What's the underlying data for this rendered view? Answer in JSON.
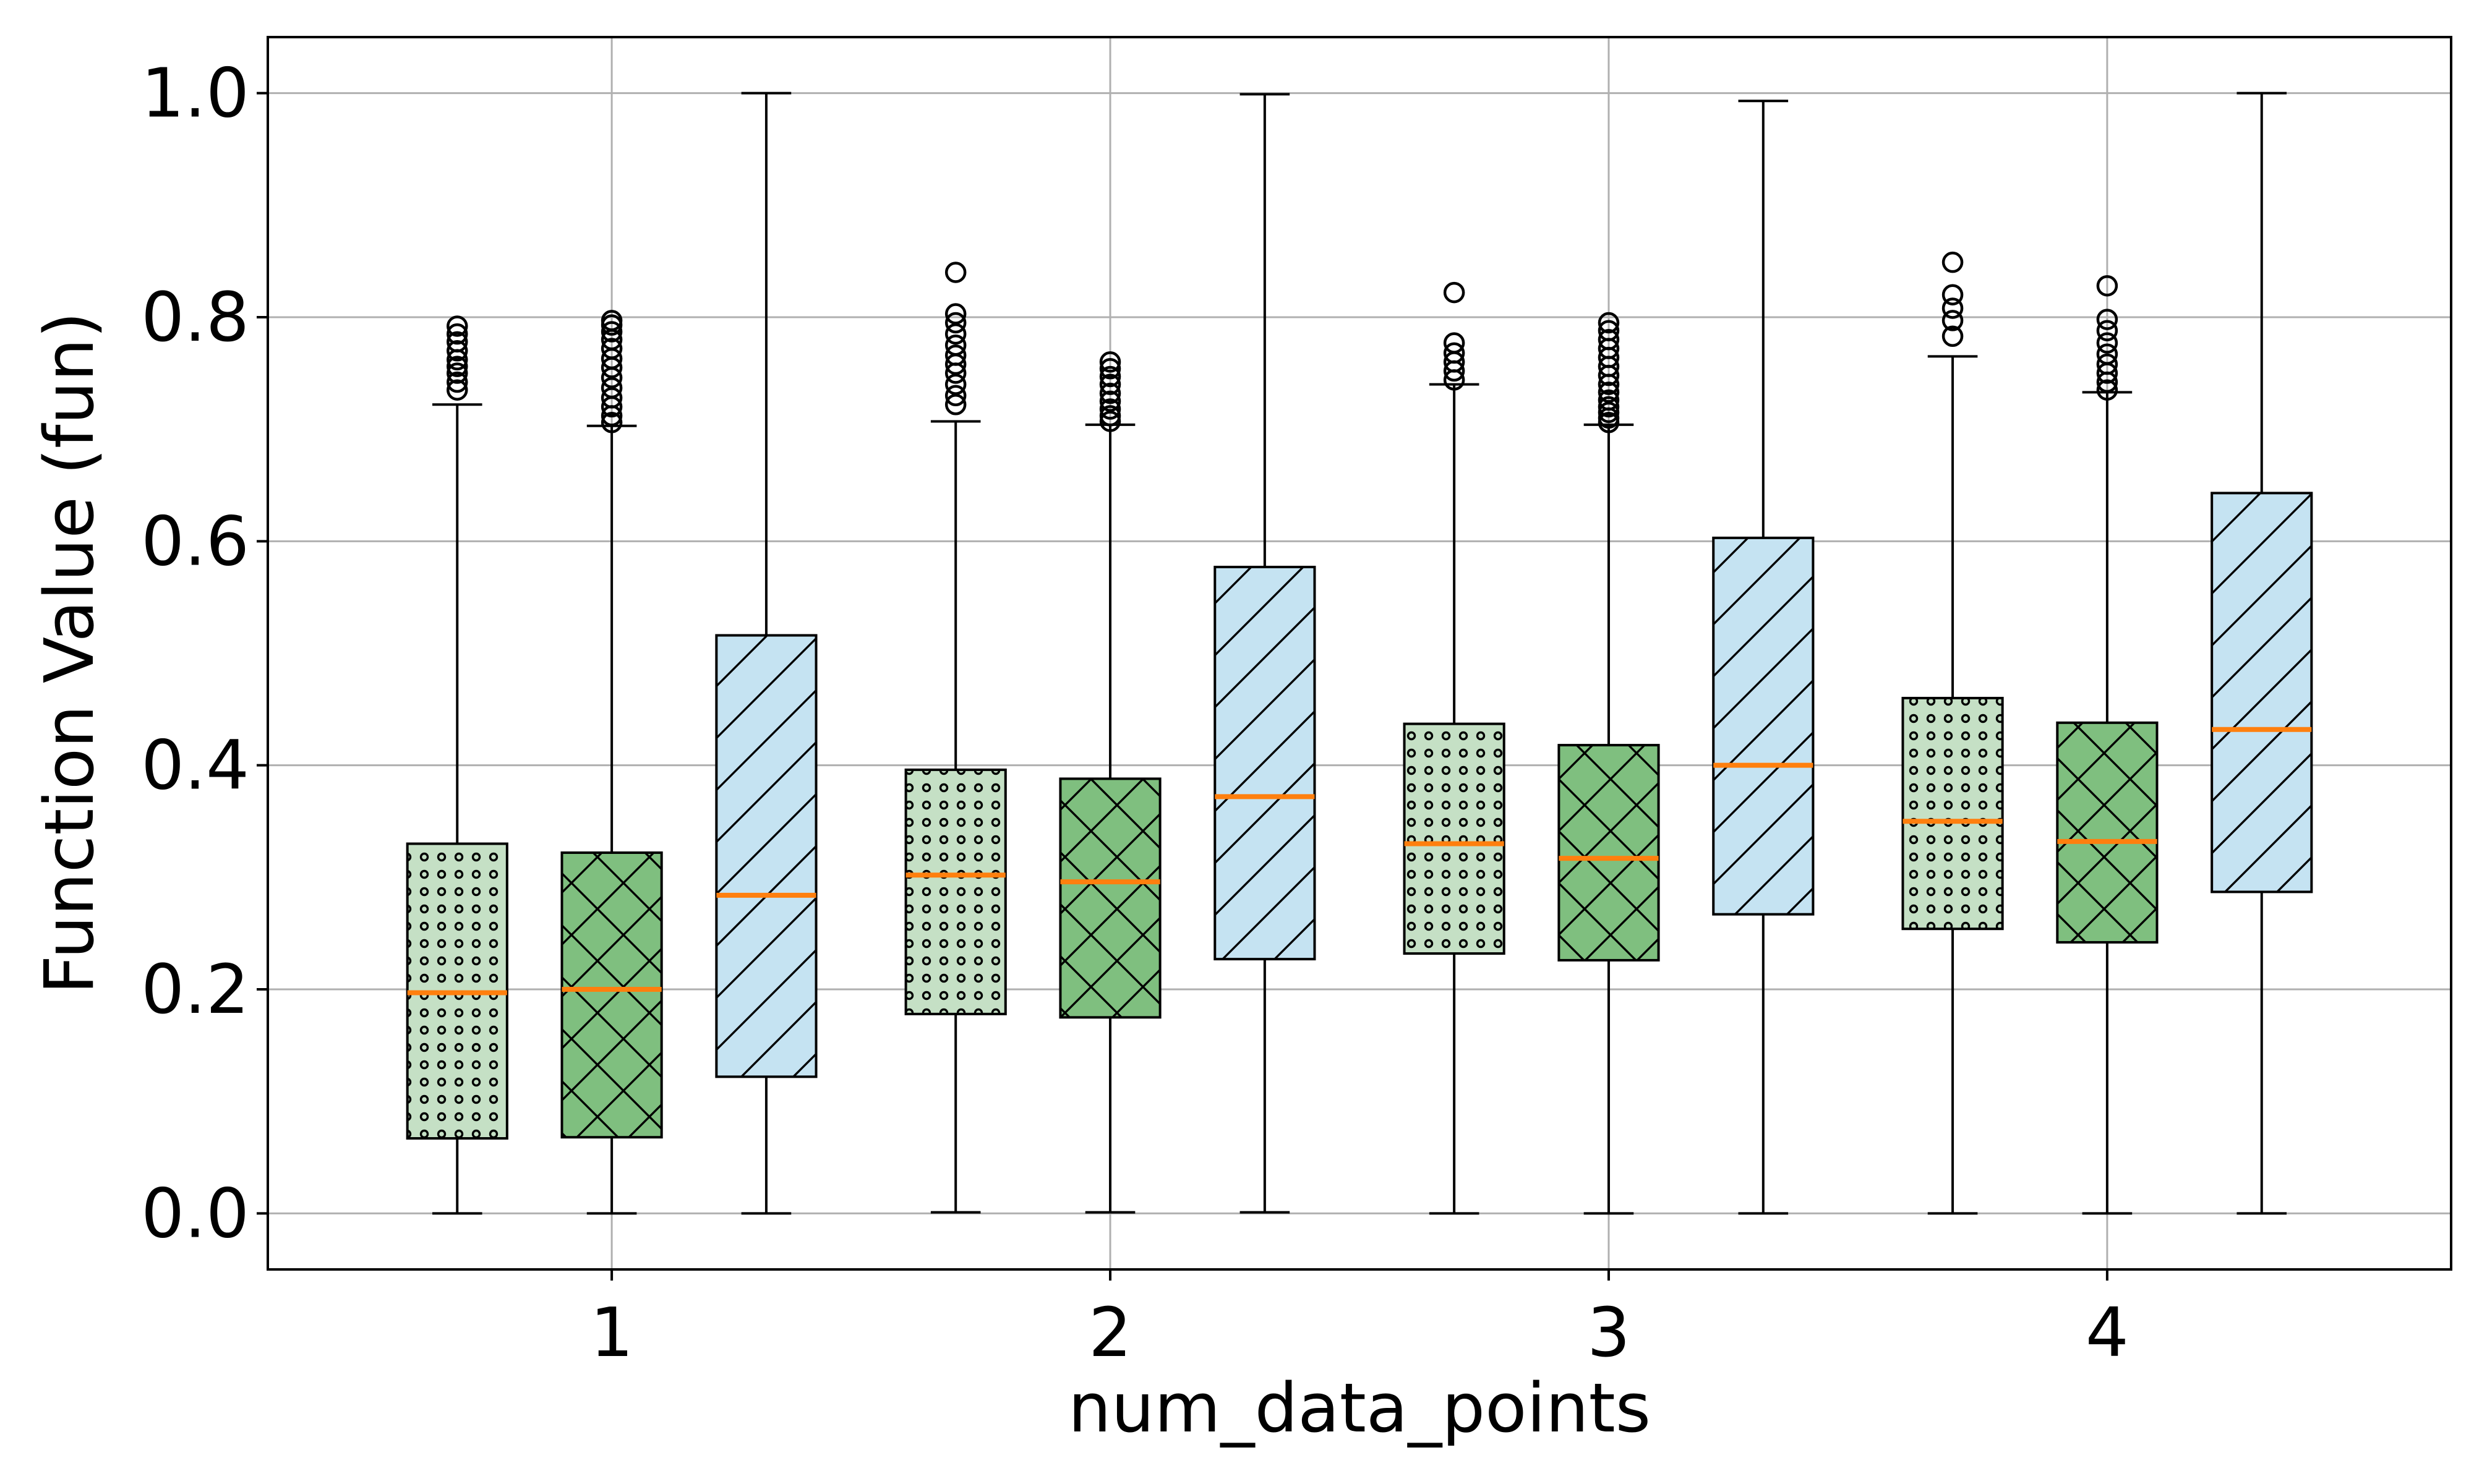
{
  "chart_data": {
    "type": "box",
    "xlabel": "num_data_points",
    "ylabel": "Function Value (fun)",
    "ylim": [
      -0.05,
      1.05
    ],
    "yticks": [
      "0.0",
      "0.2",
      "0.4",
      "0.6",
      "0.8",
      "1.0"
    ],
    "categories": [
      "1",
      "2",
      "3",
      "4"
    ],
    "grid": true,
    "legend": "none",
    "series": [
      {
        "style": {
          "fill": "#c5e0c5",
          "hatch": "dots"
        },
        "boxes": [
          {
            "whislo": 0.0,
            "q1": 0.067,
            "med": 0.197,
            "q3": 0.33,
            "whishi": 0.722,
            "fliers": [
              0.735,
              0.742,
              0.75,
              0.756,
              0.762,
              0.77,
              0.778,
              0.785,
              0.792
            ]
          },
          {
            "whislo": 0.001,
            "q1": 0.178,
            "med": 0.302,
            "q3": 0.396,
            "whishi": 0.707,
            "fliers": [
              0.722,
              0.73,
              0.74,
              0.75,
              0.758,
              0.766,
              0.775,
              0.785,
              0.795,
              0.803,
              0.84
            ]
          },
          {
            "whislo": 0.0,
            "q1": 0.232,
            "med": 0.33,
            "q3": 0.437,
            "whishi": 0.74,
            "fliers": [
              0.744,
              0.752,
              0.76,
              0.768,
              0.777,
              0.822
            ]
          },
          {
            "whislo": 0.0,
            "q1": 0.254,
            "med": 0.35,
            "q3": 0.46,
            "whishi": 0.765,
            "fliers": [
              0.783,
              0.797,
              0.808,
              0.82,
              0.849
            ]
          }
        ]
      },
      {
        "style": {
          "fill": "#7fbf7f",
          "hatch": "crosshatch"
        },
        "boxes": [
          {
            "whislo": 0.0,
            "q1": 0.068,
            "med": 0.2,
            "q3": 0.322,
            "whishi": 0.703,
            "fliers": [
              0.706,
              0.712,
              0.72,
              0.728,
              0.737,
              0.746,
              0.755,
              0.763,
              0.772,
              0.78,
              0.787,
              0.793,
              0.797
            ]
          },
          {
            "whislo": 0.001,
            "q1": 0.175,
            "med": 0.296,
            "q3": 0.388,
            "whishi": 0.704,
            "fliers": [
              0.707,
              0.712,
              0.718,
              0.725,
              0.732,
              0.74,
              0.747,
              0.754,
              0.76
            ]
          },
          {
            "whislo": 0.0,
            "q1": 0.226,
            "med": 0.317,
            "q3": 0.418,
            "whishi": 0.704,
            "fliers": [
              0.706,
              0.71,
              0.715,
              0.72,
              0.726,
              0.733,
              0.74,
              0.748,
              0.756,
              0.764,
              0.772,
              0.78,
              0.788,
              0.795
            ]
          },
          {
            "whislo": 0.0,
            "q1": 0.242,
            "med": 0.332,
            "q3": 0.438,
            "whishi": 0.733,
            "fliers": [
              0.735,
              0.742,
              0.75,
              0.758,
              0.767,
              0.777,
              0.788,
              0.798,
              0.828
            ]
          }
        ]
      },
      {
        "style": {
          "fill": "#c5e3f2",
          "hatch": "diagonal"
        },
        "boxes": [
          {
            "whislo": 0.0,
            "q1": 0.122,
            "med": 0.284,
            "q3": 0.516,
            "whishi": 1.0,
            "fliers": []
          },
          {
            "whislo": 0.001,
            "q1": 0.227,
            "med": 0.372,
            "q3": 0.577,
            "whishi": 0.999,
            "fliers": []
          },
          {
            "whislo": 0.0,
            "q1": 0.267,
            "med": 0.4,
            "q3": 0.603,
            "whishi": 0.993,
            "fliers": []
          },
          {
            "whislo": 0.0,
            "q1": 0.287,
            "med": 0.432,
            "q3": 0.643,
            "whishi": 1.0,
            "fliers": []
          }
        ]
      }
    ],
    "colors": {
      "median": "#ff7f0e",
      "edge": "#000000",
      "grid": "#b0b0b0"
    }
  }
}
